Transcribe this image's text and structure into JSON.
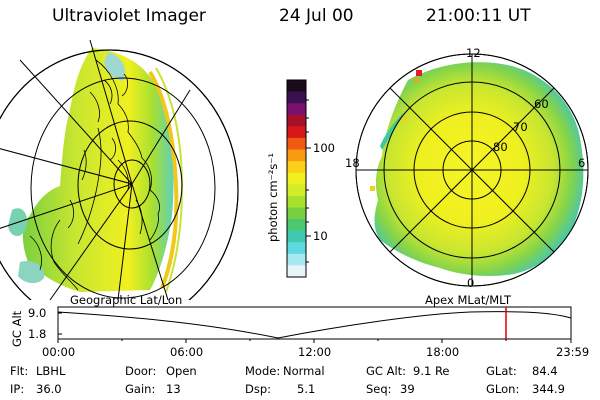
{
  "header": {
    "instrument": "Ultraviolet Imager",
    "date": "24 Jul 00",
    "time": "21:00:11 UT"
  },
  "colorbar": {
    "unit_label": "photon cm⁻²s⁻¹",
    "ticks": [
      "100",
      "10"
    ],
    "colors": [
      "#1b0a1a",
      "#3a1050",
      "#7a1070",
      "#a8102a",
      "#d81818",
      "#f05a10",
      "#f89a10",
      "#fcd018",
      "#f0f020",
      "#d2ec28",
      "#a8e030",
      "#78d040",
      "#4cc870",
      "#40c8b0",
      "#60d8e0",
      "#a8e8f0",
      "#e8f4f8"
    ]
  },
  "left_map": {
    "label": "Geographic Lat/Lon"
  },
  "right_map": {
    "label": "Apex MLat/MLT",
    "mlt_labels": {
      "top": "12",
      "left": "18",
      "right": "6",
      "bottom": "0"
    },
    "lat_labels": [
      "60",
      "70",
      "80"
    ]
  },
  "altitude_plot": {
    "ylabel": "GC Alt",
    "yticks": [
      "9.0",
      "1.8"
    ],
    "xticks": [
      "00:00",
      "06:00",
      "12:00",
      "18:00",
      "23:59"
    ],
    "current_marker_color": "#e00000"
  },
  "info": {
    "row1": [
      {
        "key": "Flt:",
        "value": "LBHL"
      },
      {
        "key": "Door:",
        "value": "Open"
      },
      {
        "key": "Mode:",
        "value": "Normal"
      },
      {
        "key": "GC Alt:",
        "value": "9.1 Re"
      },
      {
        "key": "GLat:",
        "value": "84.4"
      }
    ],
    "row2": [
      {
        "key": "IP:",
        "value": "36.0"
      },
      {
        "key": "Gain:",
        "value": "13"
      },
      {
        "key": "Dsp:",
        "value": "5.1"
      },
      {
        "key": "Seq:",
        "value": "39"
      },
      {
        "key": "GLon:",
        "value": "344.9"
      }
    ]
  }
}
